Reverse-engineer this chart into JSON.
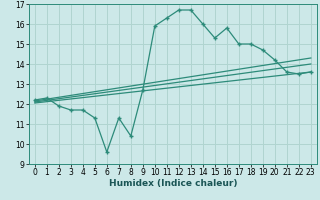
{
  "xlabel": "Humidex (Indice chaleur)",
  "bg_color": "#cce8e8",
  "line_color": "#2d8b7a",
  "grid_color": "#b0d4d0",
  "xlim": [
    -0.5,
    23.5
  ],
  "ylim": [
    9,
    17
  ],
  "xticks": [
    0,
    1,
    2,
    3,
    4,
    5,
    6,
    7,
    8,
    9,
    10,
    11,
    12,
    13,
    14,
    15,
    16,
    17,
    18,
    19,
    20,
    21,
    22,
    23
  ],
  "yticks": [
    9,
    10,
    11,
    12,
    13,
    14,
    15,
    16,
    17
  ],
  "main_x": [
    0,
    1,
    2,
    3,
    4,
    5,
    6,
    7,
    8,
    9,
    10,
    11,
    12,
    13,
    14,
    15,
    16,
    17,
    18,
    19,
    20,
    21,
    22,
    23
  ],
  "main_y": [
    12.2,
    12.3,
    11.9,
    11.7,
    11.7,
    11.3,
    9.6,
    11.3,
    10.4,
    12.7,
    15.9,
    16.3,
    16.7,
    16.7,
    16.0,
    15.3,
    15.8,
    15.0,
    15.0,
    14.7,
    14.2,
    13.6,
    13.5,
    13.6
  ],
  "trend1_x": [
    0,
    23
  ],
  "trend1_y": [
    12.15,
    14.3
  ],
  "trend2_x": [
    0,
    23
  ],
  "trend2_y": [
    12.05,
    13.6
  ],
  "trend3_x": [
    0,
    23
  ],
  "trend3_y": [
    12.1,
    14.0
  ],
  "tick_fontsize": 5.5,
  "xlabel_fontsize": 6.5
}
